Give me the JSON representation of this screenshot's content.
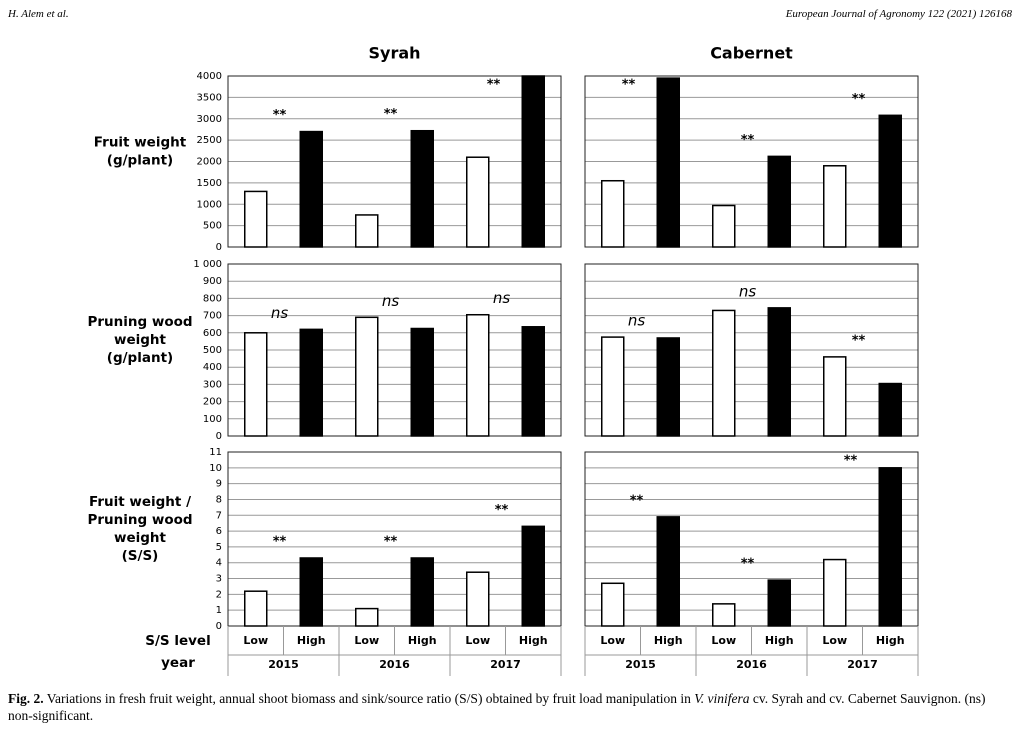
{
  "header": {
    "left": "H. Alem et al.",
    "right": "European Journal of Agronomy 122 (2021) 126168"
  },
  "column_titles": [
    "Syrah",
    "Cabernet"
  ],
  "row_labels": [
    [
      "Fruit weight",
      "(g/plant)"
    ],
    [
      "Pruning wood",
      "weight",
      "(g/plant)"
    ],
    [
      "Fruit weight /",
      "Pruning wood",
      "weight",
      "(S/S)"
    ]
  ],
  "x_axis": {
    "level_label": "S/S level",
    "year_label": "year",
    "columns": [
      {
        "levels": [
          "Low",
          "High",
          "Low",
          "High",
          "Low",
          "High"
        ],
        "years": [
          "2015",
          "2016",
          "2017"
        ]
      },
      {
        "levels": [
          "Low",
          "High",
          "Low",
          "High",
          "Low",
          "High"
        ],
        "years": [
          "2015",
          "2016",
          "2017"
        ]
      }
    ]
  },
  "level_colors": {
    "Low": "#ffffff",
    "High": "#000000"
  },
  "chart_data": [
    {
      "type": "bar",
      "column": 0,
      "row": 0,
      "values": [
        1300,
        2700,
        750,
        2720,
        2100,
        4000
      ],
      "annotations": [
        "**",
        "**",
        "**"
      ],
      "ylim": [
        0,
        4000
      ],
      "yticks": [
        0,
        500,
        1000,
        1500,
        2000,
        2500,
        3000,
        3500,
        4000
      ],
      "show_tick_labels": true,
      "grid": true
    },
    {
      "type": "bar",
      "column": 1,
      "row": 0,
      "values": [
        1550,
        3950,
        970,
        2120,
        1900,
        3080
      ],
      "annotations": [
        "**",
        "**",
        "**"
      ],
      "ylim": [
        0,
        4000
      ],
      "yticks": [
        0,
        500,
        1000,
        1500,
        2000,
        2500,
        3000,
        3500,
        4000
      ],
      "show_tick_labels": false,
      "grid": true
    },
    {
      "type": "bar",
      "column": 0,
      "row": 1,
      "values": [
        600,
        620,
        690,
        625,
        705,
        635
      ],
      "annotations": [
        "ns",
        "ns",
        "ns"
      ],
      "ylim": [
        0,
        1000
      ],
      "yticks": [
        0,
        100,
        200,
        300,
        400,
        500,
        600,
        700,
        800,
        900,
        {
          "value": 1000,
          "label": "1 000"
        }
      ],
      "show_tick_labels": true,
      "grid": true
    },
    {
      "type": "bar",
      "column": 1,
      "row": 1,
      "values": [
        575,
        570,
        730,
        745,
        460,
        305
      ],
      "annotations": [
        "ns",
        "ns",
        "**"
      ],
      "ylim": [
        0,
        1000
      ],
      "yticks": [
        0,
        100,
        200,
        300,
        400,
        500,
        600,
        700,
        800,
        900,
        1000
      ],
      "show_tick_labels": false,
      "grid": true
    },
    {
      "type": "bar",
      "column": 0,
      "row": 2,
      "values": [
        2.2,
        4.3,
        1.1,
        4.3,
        3.4,
        6.3
      ],
      "annotations": [
        "**",
        "**",
        "**"
      ],
      "ylim": [
        0,
        11
      ],
      "yticks": [
        0,
        1,
        2,
        3,
        4,
        5,
        6,
        7,
        8,
        9,
        10,
        11
      ],
      "show_tick_labels": true,
      "grid": true
    },
    {
      "type": "bar",
      "column": 1,
      "row": 2,
      "values": [
        2.7,
        6.9,
        1.4,
        2.9,
        4.2,
        10
      ],
      "annotations": [
        "**",
        "**",
        "**"
      ],
      "ylim": [
        0,
        11
      ],
      "yticks": [
        0,
        1,
        2,
        3,
        4,
        5,
        6,
        7,
        8,
        9,
        10,
        11
      ],
      "show_tick_labels": false,
      "grid": true
    }
  ],
  "caption": {
    "label": "Fig. 2.",
    "text_before": " Variations in fresh fruit weight, annual shoot biomass and sink/source ratio (S/S) obtained by fruit load manipulation in ",
    "italic": "V. vinifera",
    "text_after": " cv. Syrah and cv. Cabernet Sauvignon. (ns) non-significant."
  }
}
